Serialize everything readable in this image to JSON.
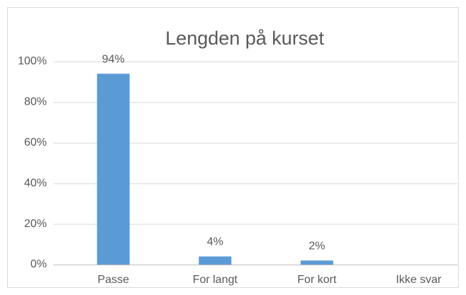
{
  "chart_data": {
    "type": "bar",
    "title": "Lengden på kurset",
    "categories": [
      "Passe",
      "For langt",
      "For kort",
      "Ikke svar"
    ],
    "values": [
      94,
      4,
      2,
      0
    ],
    "value_labels": [
      "94%",
      "4%",
      "2%",
      null
    ],
    "color": "#5b9bd5",
    "ylim": [
      0,
      100
    ],
    "yticks": [
      {
        "value": 0,
        "label": "0%"
      },
      {
        "value": 20,
        "label": "20%"
      },
      {
        "value": 40,
        "label": "40%"
      },
      {
        "value": 60,
        "label": "60%"
      },
      {
        "value": 80,
        "label": "80%"
      },
      {
        "value": 100,
        "label": "100%"
      }
    ],
    "grid": true
  }
}
